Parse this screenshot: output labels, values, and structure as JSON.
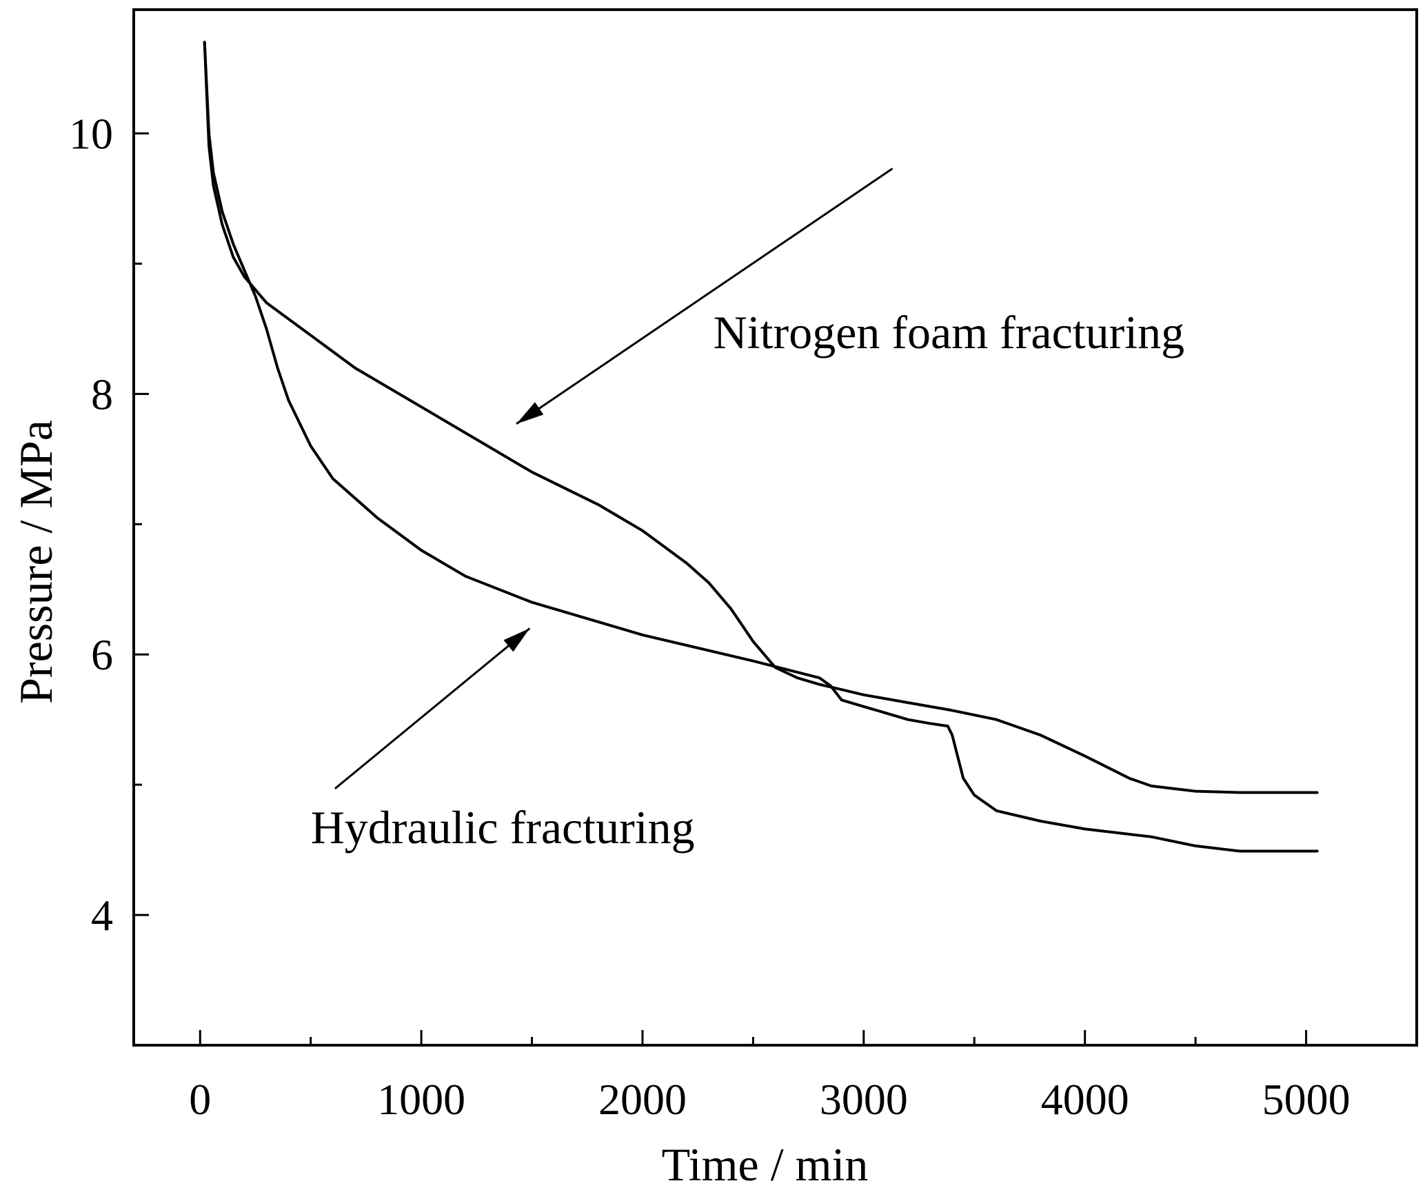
{
  "chart_data": {
    "type": "line",
    "xlabel": "Time / min",
    "ylabel": "Pressure / MPa",
    "xlim": [
      -300,
      5500
    ],
    "ylim": [
      3,
      10.95
    ],
    "x_ticks": [
      0,
      1000,
      2000,
      3000,
      4000,
      5000
    ],
    "y_ticks": [
      4,
      6,
      8,
      10
    ],
    "grid": false,
    "series": [
      {
        "name": "Nitrogen foam fracturing",
        "x": [
          20,
          40,
          60,
          100,
          150,
          200,
          300,
          500,
          700,
          1000,
          1300,
          1500,
          1800,
          2000,
          2200,
          2300,
          2400,
          2500,
          2600,
          2700,
          2800,
          2900,
          3000,
          3200,
          3400,
          3600,
          3800,
          4000,
          4200,
          4300,
          4500,
          4700,
          5000,
          5050
        ],
        "y": [
          10.7,
          9.9,
          9.6,
          9.3,
          9.05,
          8.9,
          8.7,
          8.45,
          8.2,
          7.9,
          7.6,
          7.4,
          7.15,
          6.95,
          6.7,
          6.55,
          6.35,
          6.1,
          5.9,
          5.82,
          5.77,
          5.73,
          5.69,
          5.63,
          5.57,
          5.5,
          5.38,
          5.22,
          5.05,
          4.99,
          4.95,
          4.94,
          4.94,
          4.94
        ]
      },
      {
        "name": "Hydraulic fracturing",
        "x": [
          20,
          40,
          60,
          100,
          150,
          200,
          250,
          300,
          350,
          400,
          500,
          600,
          800,
          1000,
          1200,
          1500,
          2000,
          2500,
          2800,
          2850,
          2900,
          3000,
          3100,
          3200,
          3300,
          3380,
          3400,
          3450,
          3500,
          3600,
          3800,
          4000,
          4300,
          4500,
          4700,
          5050
        ],
        "y": [
          10.7,
          10.0,
          9.7,
          9.4,
          9.15,
          8.95,
          8.75,
          8.5,
          8.2,
          7.95,
          7.6,
          7.35,
          7.05,
          6.8,
          6.6,
          6.4,
          6.15,
          5.95,
          5.82,
          5.76,
          5.65,
          5.6,
          5.55,
          5.5,
          5.47,
          5.45,
          5.38,
          5.05,
          4.92,
          4.8,
          4.72,
          4.66,
          4.6,
          4.53,
          4.49,
          4.49
        ]
      }
    ],
    "annotations": [
      {
        "text": "Nitrogen foam fracturing",
        "text_at": [
          2320,
          8.35
        ],
        "arrow_from": [
          3130,
          9.73
        ],
        "arrow_to": [
          1430,
          7.77
        ]
      },
      {
        "text": "Hydraulic fracturing",
        "text_at": [
          500,
          4.55
        ],
        "arrow_from": [
          610,
          4.97
        ],
        "arrow_to": [
          1490,
          6.2
        ]
      }
    ]
  }
}
